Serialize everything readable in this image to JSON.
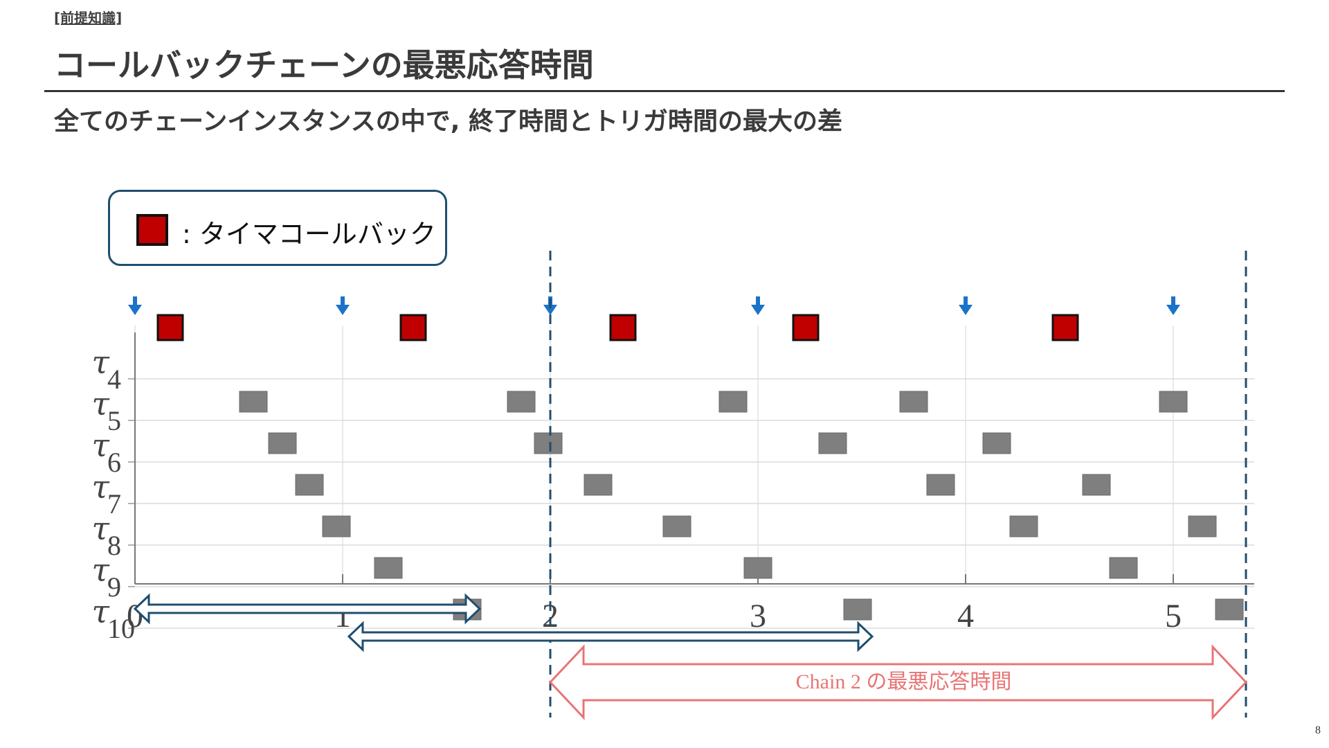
{
  "header": {
    "tag": "[前提知識]",
    "title": "コールバックチェーンの最悪応答時間",
    "subtitle": "全てのチェーンインスタンスの中で, 終了時間とトリガ時間の最大の差"
  },
  "legend": {
    "label": ": タイマコールバック",
    "swatch_color": "#c00000"
  },
  "chart_data": {
    "type": "gantt",
    "x_ticks": [
      "0",
      "1",
      "2",
      "3",
      "4",
      "5"
    ],
    "xlim": [
      0,
      5.35
    ],
    "rows": [
      {
        "symbol": "τ",
        "sub": "4"
      },
      {
        "symbol": "τ",
        "sub": "5"
      },
      {
        "symbol": "τ",
        "sub": "6"
      },
      {
        "symbol": "τ",
        "sub": "7"
      },
      {
        "symbol": "τ",
        "sub": "8"
      },
      {
        "symbol": "τ",
        "sub": "9"
      },
      {
        "symbol": "τ",
        "sub": "10"
      }
    ],
    "trigger_times": [
      0,
      1,
      2,
      3,
      4,
      5
    ],
    "timer_callbacks": [
      0.17,
      1.34,
      2.35,
      3.23,
      4.48
    ],
    "callbacks": [
      {
        "row": 1,
        "t": 0.57
      },
      {
        "row": 1,
        "t": 1.86
      },
      {
        "row": 1,
        "t": 2.88
      },
      {
        "row": 1,
        "t": 3.75
      },
      {
        "row": 1,
        "t": 5.0
      },
      {
        "row": 2,
        "t": 0.71
      },
      {
        "row": 2,
        "t": 1.99
      },
      {
        "row": 2,
        "t": 3.36
      },
      {
        "row": 2,
        "t": 4.15
      },
      {
        "row": 3,
        "t": 0.84
      },
      {
        "row": 3,
        "t": 2.23
      },
      {
        "row": 3,
        "t": 3.88
      },
      {
        "row": 3,
        "t": 4.63
      },
      {
        "row": 4,
        "t": 0.97
      },
      {
        "row": 4,
        "t": 2.61
      },
      {
        "row": 4,
        "t": 4.28
      },
      {
        "row": 4,
        "t": 5.14
      },
      {
        "row": 5,
        "t": 1.22
      },
      {
        "row": 5,
        "t": 3.0
      },
      {
        "row": 5,
        "t": 4.76
      },
      {
        "row": 6,
        "t": 1.6
      },
      {
        "row": 6,
        "t": 3.48
      },
      {
        "row": 6,
        "t": 5.27
      }
    ],
    "dashed_lines": [
      2.0,
      5.35
    ],
    "chain_spans": [
      {
        "start": 0,
        "end": 1.66,
        "label": ""
      },
      {
        "start": 1.03,
        "end": 3.55,
        "label": ""
      },
      {
        "start": 2.0,
        "end": 5.35,
        "label": "Chain 2 の最悪応答時間"
      }
    ],
    "colors": {
      "timer": "#c00000",
      "callback": "#7f7f7f",
      "trigger": "#1a73c8",
      "dashed": "#1f4e6e",
      "span": "#1f4e6e",
      "worst_span": "#e87474"
    }
  },
  "page": {
    "number": "8"
  }
}
